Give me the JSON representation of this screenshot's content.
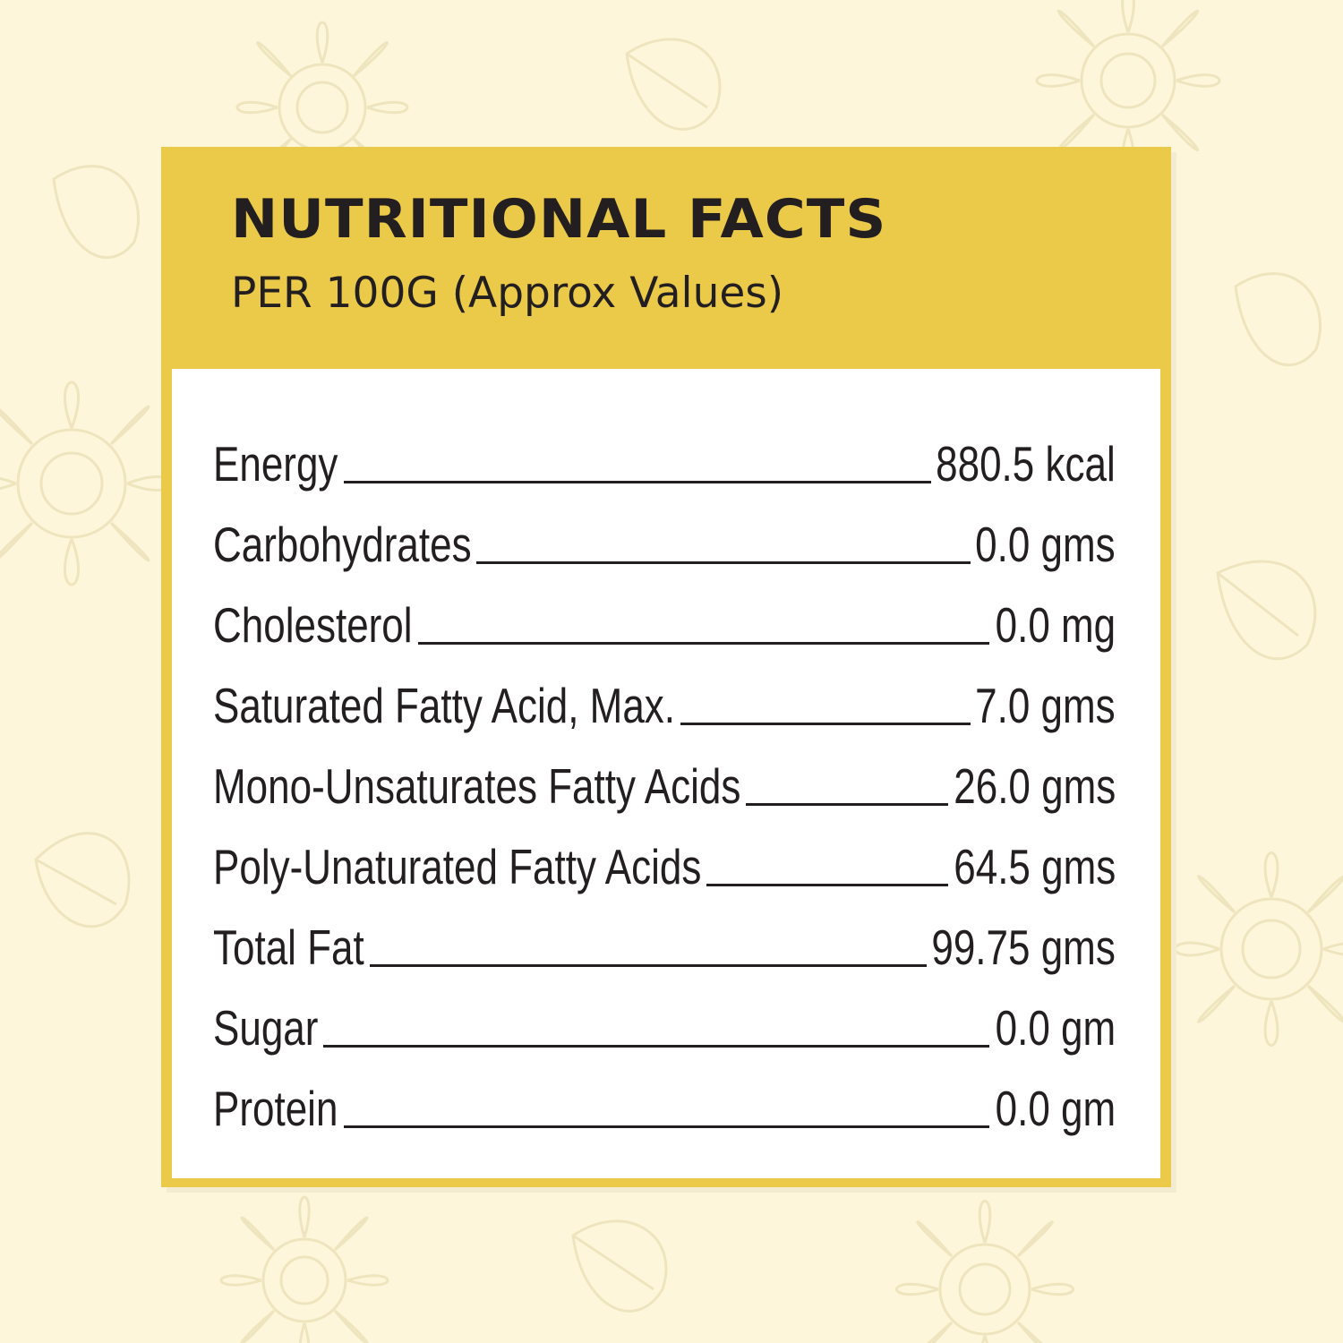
{
  "header": {
    "title": "NUTRITIONAL FACTS",
    "subtitle": "PER 100G (Approx Values)"
  },
  "facts": [
    {
      "label": "Energy",
      "value": "880.5 kcal"
    },
    {
      "label": "Carbohydrates",
      "value": "0.0 gms"
    },
    {
      "label": "Cholesterol",
      "value": "0.0 mg"
    },
    {
      "label": "Saturated Fatty Acid, Max.",
      "value": "7.0 gms"
    },
    {
      "label": "Mono-Unsaturates Fatty Acids",
      "value": "26.0 gms"
    },
    {
      "label": "Poly-Unaturated Fatty Acids",
      "value": "64.5 gms"
    },
    {
      "label": "Total Fat",
      "value": "99.75 gms"
    },
    {
      "label": "Sugar",
      "value": "0.0 gm"
    },
    {
      "label": "Protein",
      "value": "0.0 gm"
    }
  ],
  "colors": {
    "background": "#fdf6da",
    "card": "#ebca4a",
    "panel": "#ffffff",
    "text": "#231f20",
    "pattern": "#e6dcae"
  }
}
